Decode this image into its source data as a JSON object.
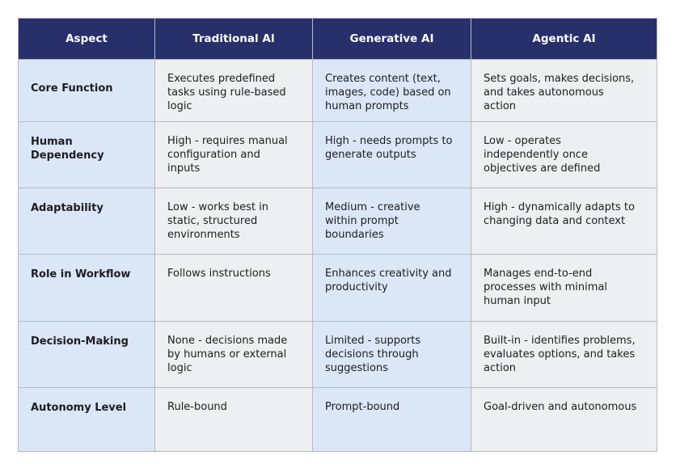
{
  "table": {
    "header": [
      "Aspect",
      "Traditional AI",
      "Generative AI",
      "Agentic AI"
    ],
    "rows": [
      [
        "Core Function",
        "Executes predefined tasks using rule-based logic",
        "Creates content (text, images, code) based on human prompts",
        "Sets goals, makes decisions, and takes autonomous action"
      ],
      [
        "Human Dependency",
        "High - requires manual configuration and inputs",
        "High - needs prompts to generate outputs",
        "Low - operates independently once objectives are defined"
      ],
      [
        "Adaptability",
        "Low - works best in static, structured environments",
        "Medium - creative within prompt boundaries",
        "High - dynamically adapts to changing data and context"
      ],
      [
        "Role in Workflow",
        "Follows instructions",
        "Enhances creativity and productivity",
        "Manages end-to-end processes with minimal human input"
      ],
      [
        "Decision-Making",
        "None - decisions made by humans or external logic",
        "Limited - supports decisions through suggestions",
        "Built-in - identifies problems, evaluates options, and takes action"
      ],
      [
        "Autonomy Level",
        "Rule-bound",
        "Prompt-bound",
        "Goal-driven and autonomous"
      ]
    ]
  }
}
